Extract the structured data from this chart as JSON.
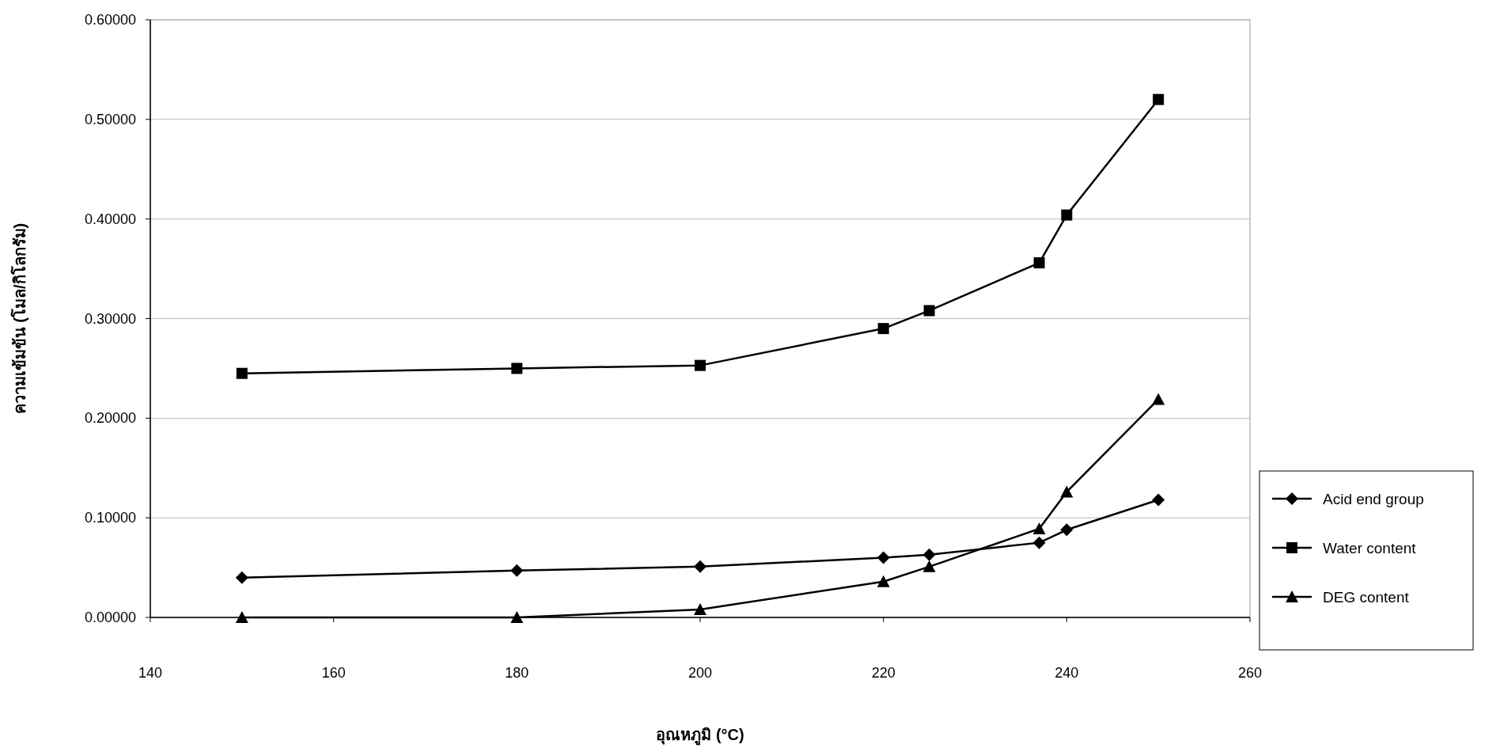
{
  "chart_data": {
    "type": "line",
    "xlabel": "อุณหภูมิ (°C)",
    "ylabel": "ความเข้มข้น (โมล/กิโลกรัม)",
    "xlim": [
      140,
      260
    ],
    "xticks": [
      140,
      160,
      180,
      200,
      220,
      240,
      260
    ],
    "ylim": [
      0,
      0.6
    ],
    "yticks": [
      {
        "value": 0,
        "label": "0.00000"
      },
      {
        "value": 0.1,
        "label": "0.10000"
      },
      {
        "value": 0.2,
        "label": "0.20000"
      },
      {
        "value": 0.3,
        "label": "0.30000"
      },
      {
        "value": 0.4,
        "label": "0.40000"
      },
      {
        "value": 0.5,
        "label": "0.50000"
      },
      {
        "value": 0.6,
        "label": "0.60000"
      }
    ],
    "grid": "y",
    "legend": "right",
    "line_style": "solid",
    "series": [
      {
        "name": "Acid end group",
        "color": "#000000",
        "marker": "diamond",
        "x": [
          150,
          180,
          200,
          220,
          225,
          237,
          240,
          250
        ],
        "values": [
          0.04,
          0.047,
          0.051,
          0.06,
          0.063,
          0.075,
          0.088,
          0.118
        ]
      },
      {
        "name": "Water content",
        "color": "#000000",
        "marker": "square",
        "x": [
          150,
          180,
          200,
          220,
          225,
          237,
          240,
          250
        ],
        "values": [
          0.245,
          0.25,
          0.253,
          0.29,
          0.308,
          0.356,
          0.404,
          0.52
        ]
      },
      {
        "name": "DEG content",
        "color": "#000000",
        "marker": "triangle",
        "x": [
          150,
          180,
          200,
          220,
          225,
          237,
          240,
          250
        ],
        "values": [
          0,
          0,
          0.008,
          0.036,
          0.051,
          0.089,
          0.126,
          0.219
        ]
      }
    ]
  }
}
